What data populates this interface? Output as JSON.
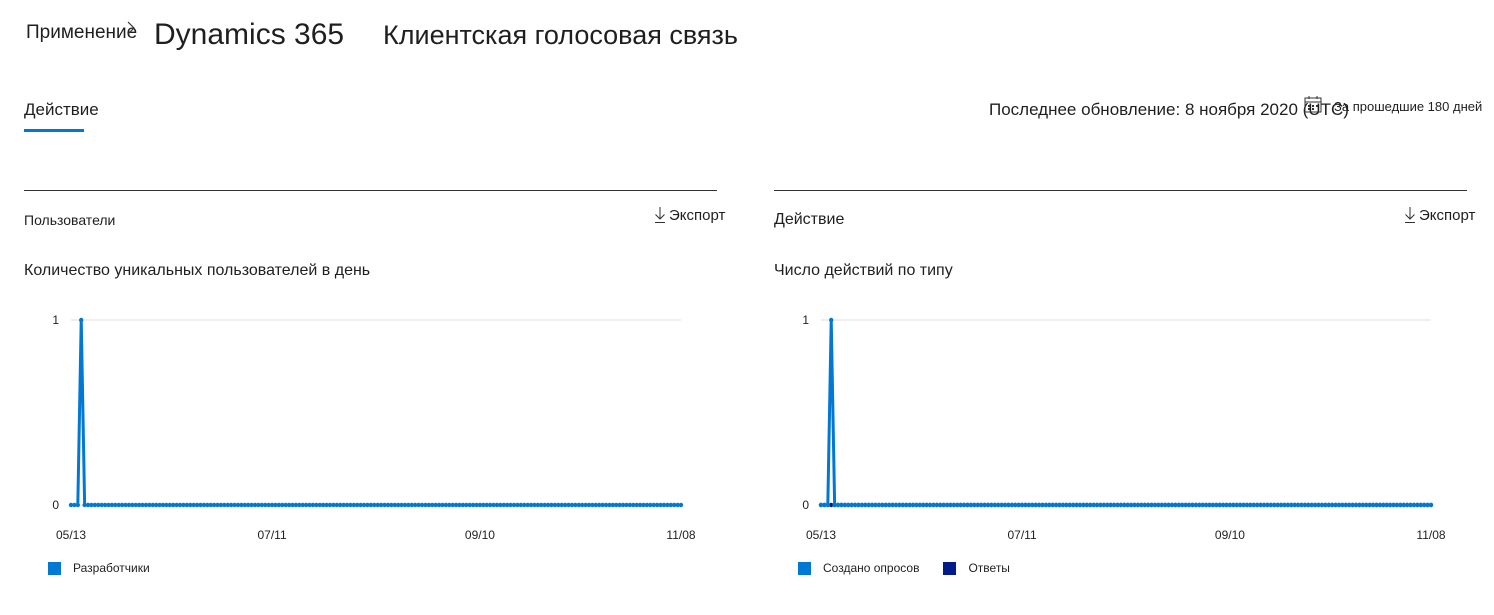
{
  "breadcrumb": {
    "first": "Применение",
    "second": "Dynamics 365",
    "third": "Клиентская голосовая связь"
  },
  "tabs": [
    {
      "label": "Действие",
      "active": true
    }
  ],
  "status": {
    "last_updated": "Последнее обновление: 8 ноября 2020 (UTC)",
    "period": "За прошедшие 180 дней"
  },
  "icons": {
    "breadcrumb_sep": "chevron-right-icon",
    "calendar": "calendar-icon",
    "export": "download-icon"
  },
  "colors": {
    "accent": "#0078d4",
    "series_primary": "#0078d4",
    "series_secondary": "#001c88"
  },
  "cards": [
    {
      "title": "Пользователи",
      "export_label": "Экспорт",
      "chart_title": "Количество уникальных пользователей в день"
    },
    {
      "title": "Действие",
      "export_label": "Экспорт",
      "chart_title": "Число действий по типу"
    }
  ],
  "chart_data": [
    {
      "type": "line",
      "title": "Количество уникальных пользователей в день",
      "x_start": "05/13",
      "x_end": "11/08",
      "x_ticks": [
        "05/13",
        "07/11",
        "09/10",
        "11/08"
      ],
      "ylim": [
        0,
        1
      ],
      "y_ticks": [
        0,
        1
      ],
      "grid": true,
      "legend_position": "bottom-left",
      "num_points": 180,
      "series": [
        {
          "name": "Разработчики",
          "color": "#0078d4",
          "spikes": [
            {
              "date": "05/16",
              "value": 1
            }
          ],
          "baseline": 0
        }
      ]
    },
    {
      "type": "line",
      "title": "Число действий по типу",
      "x_start": "05/13",
      "x_end": "11/08",
      "x_ticks": [
        "05/13",
        "07/11",
        "09/10",
        "11/08"
      ],
      "ylim": [
        0,
        1
      ],
      "y_ticks": [
        0,
        1
      ],
      "grid": true,
      "legend_position": "bottom-left",
      "num_points": 180,
      "series": [
        {
          "name": "Создано опросов",
          "color": "#0078d4",
          "spikes": [
            {
              "date": "05/16",
              "value": 1
            }
          ],
          "baseline": 0
        },
        {
          "name": "Ответы",
          "color": "#001c88",
          "spikes": [],
          "baseline": 0
        }
      ]
    }
  ]
}
